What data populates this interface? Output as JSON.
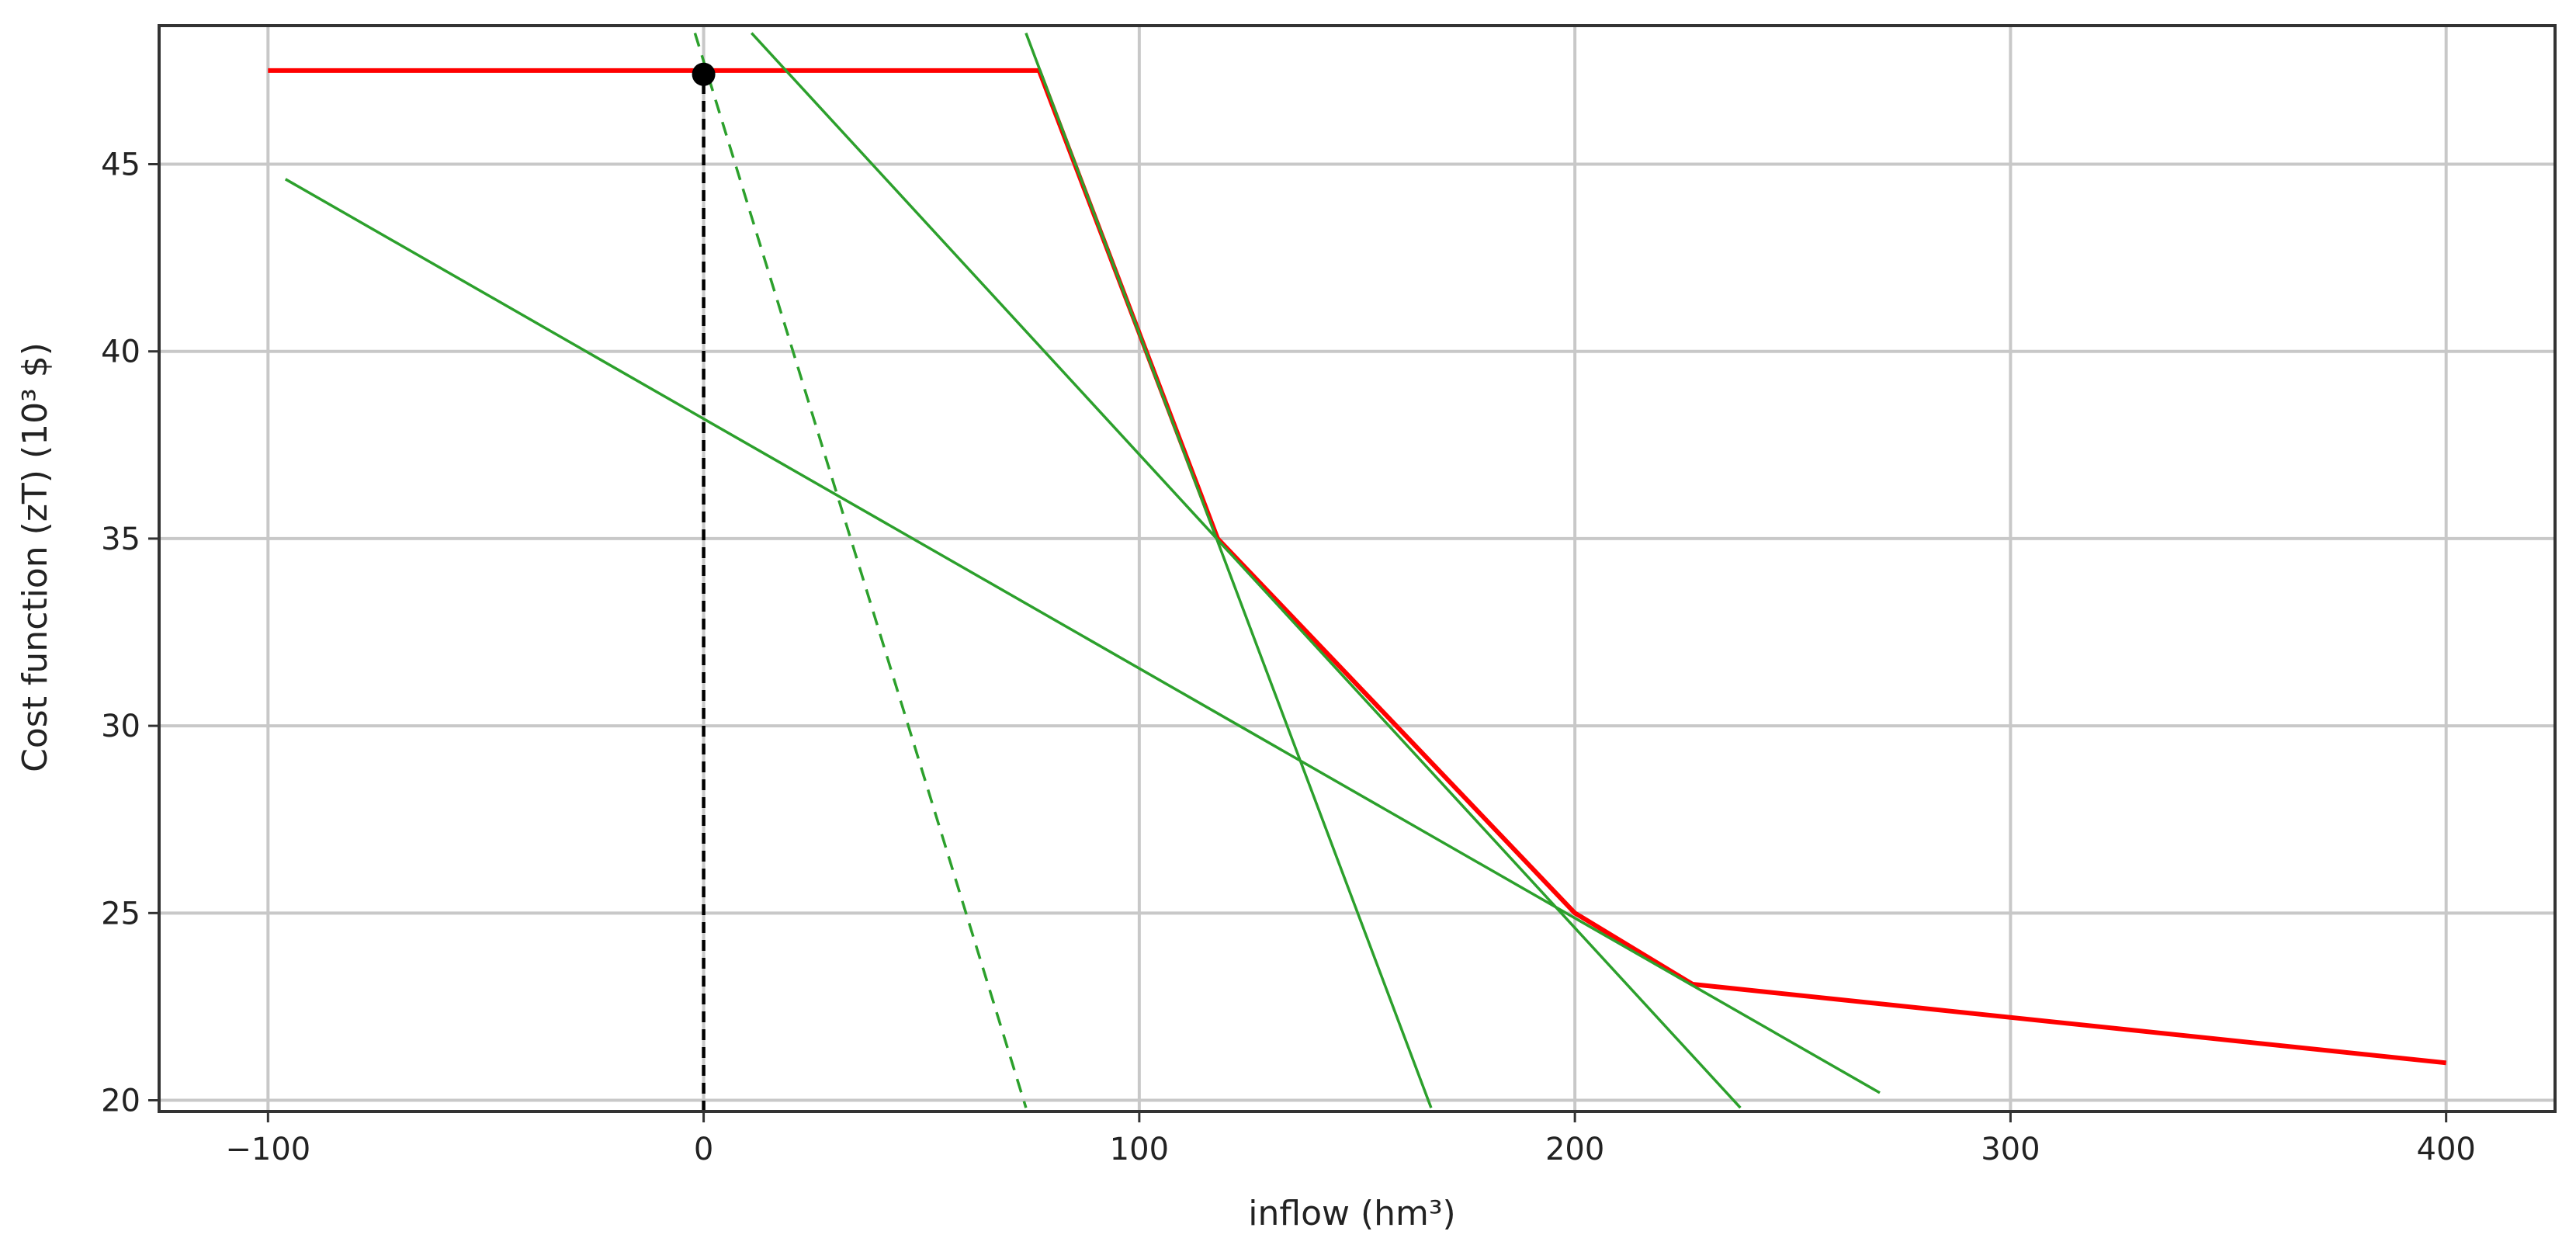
{
  "chart_data": {
    "type": "line",
    "title": "",
    "xlabel": "inflow (hm³)",
    "ylabel": "Cost function (zT) (10³ $)",
    "xlim": [
      -125,
      425
    ],
    "ylim": [
      19.7,
      48.7
    ],
    "xticks": [
      -100,
      0,
      100,
      200,
      300,
      400
    ],
    "xtick_labels": [
      "−100",
      "0",
      "100",
      "200",
      "300",
      "400"
    ],
    "yticks": [
      20,
      25,
      30,
      35,
      40,
      45
    ],
    "ytick_labels": [
      "20",
      "25",
      "30",
      "35",
      "40",
      "45"
    ],
    "grid": true,
    "series": [
      {
        "role": "cost-function-envelope",
        "color": "#ff0000",
        "style": "solid",
        "x": [
          -100,
          77,
          118,
          200,
          227,
          400
        ],
        "y": [
          47.5,
          47.5,
          35,
          25,
          23.1,
          21
        ]
      },
      {
        "role": "cut-1",
        "color": "#2ca02c",
        "style": "solid",
        "x": [
          -96,
          270
        ],
        "y": [
          44.6,
          20.2
        ]
      },
      {
        "role": "cut-2",
        "color": "#2ca02c",
        "style": "solid",
        "x": [
          11,
          238
        ],
        "y": [
          48.5,
          19.8
        ]
      },
      {
        "role": "cut-3",
        "color": "#2ca02c",
        "style": "solid",
        "x": [
          74,
          167
        ],
        "y": [
          48.5,
          19.8
        ]
      },
      {
        "role": "cut-dashed",
        "color": "#2ca02c",
        "style": "dashed",
        "x": [
          -2,
          74
        ],
        "y": [
          48.5,
          19.8
        ]
      }
    ],
    "marker": {
      "x": 0,
      "y": 47.4,
      "color": "#000000"
    },
    "vline": {
      "x": 0,
      "y_from": 19.7,
      "y_to": 47.4,
      "color": "#000000",
      "style": "dashed"
    }
  }
}
